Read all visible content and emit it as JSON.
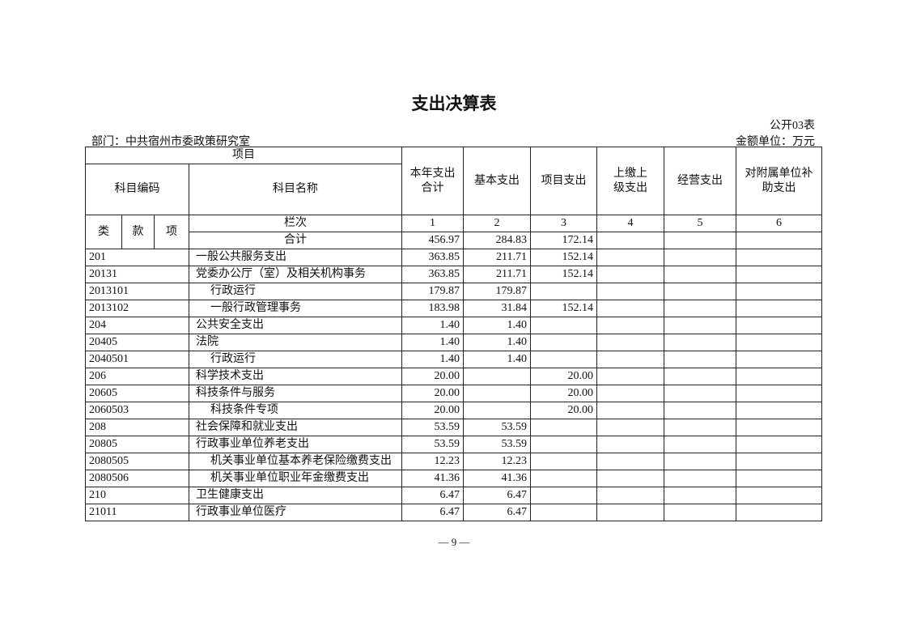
{
  "title": "支出决算表",
  "form_no": "公开03表",
  "department": "部门：中共宿州市委政策研究室",
  "unit": "金额单位：万元",
  "header": {
    "item": "项目",
    "code": "科目编码",
    "name": "科目名称",
    "lei": "类",
    "kuan": "款",
    "xiang": "项",
    "lanci": "栏次",
    "columns": [
      "本年支出合计",
      "基本支出",
      "项目支出",
      "上缴上级支出",
      "经营支出",
      "对附属单位补助支出"
    ],
    "column_numbers": [
      "1",
      "2",
      "3",
      "4",
      "5",
      "6"
    ]
  },
  "total": {
    "label": "合计",
    "values": [
      "456.97",
      "284.83",
      "172.14",
      "",
      "",
      ""
    ]
  },
  "rows": [
    {
      "code": "201",
      "name": "一般公共服务支出",
      "indent": false,
      "values": [
        "363.85",
        "211.71",
        "152.14",
        "",
        "",
        ""
      ]
    },
    {
      "code": "20131",
      "name": "党委办公厅（室）及相关机构事务",
      "indent": false,
      "values": [
        "363.85",
        "211.71",
        "152.14",
        "",
        "",
        ""
      ]
    },
    {
      "code": "2013101",
      "name": "行政运行",
      "indent": true,
      "values": [
        "179.87",
        "179.87",
        "",
        "",
        "",
        ""
      ]
    },
    {
      "code": "2013102",
      "name": "一般行政管理事务",
      "indent": true,
      "values": [
        "183.98",
        "31.84",
        "152.14",
        "",
        "",
        ""
      ]
    },
    {
      "code": "204",
      "name": "公共安全支出",
      "indent": false,
      "values": [
        "1.40",
        "1.40",
        "",
        "",
        "",
        ""
      ]
    },
    {
      "code": "20405",
      "name": "法院",
      "indent": false,
      "values": [
        "1.40",
        "1.40",
        "",
        "",
        "",
        ""
      ]
    },
    {
      "code": "2040501",
      "name": "行政运行",
      "indent": true,
      "values": [
        "1.40",
        "1.40",
        "",
        "",
        "",
        ""
      ]
    },
    {
      "code": "206",
      "name": "科学技术支出",
      "indent": false,
      "values": [
        "20.00",
        "",
        "20.00",
        "",
        "",
        ""
      ]
    },
    {
      "code": "20605",
      "name": "科技条件与服务",
      "indent": false,
      "values": [
        "20.00",
        "",
        "20.00",
        "",
        "",
        ""
      ]
    },
    {
      "code": "2060503",
      "name": "科技条件专项",
      "indent": true,
      "values": [
        "20.00",
        "",
        "20.00",
        "",
        "",
        ""
      ]
    },
    {
      "code": "208",
      "name": "社会保障和就业支出",
      "indent": false,
      "values": [
        "53.59",
        "53.59",
        "",
        "",
        "",
        ""
      ]
    },
    {
      "code": "20805",
      "name": "行政事业单位养老支出",
      "indent": false,
      "values": [
        "53.59",
        "53.59",
        "",
        "",
        "",
        ""
      ]
    },
    {
      "code": "2080505",
      "name": "机关事业单位基本养老保险缴费支出",
      "indent": true,
      "values": [
        "12.23",
        "12.23",
        "",
        "",
        "",
        ""
      ]
    },
    {
      "code": "2080506",
      "name": "机关事业单位职业年金缴费支出",
      "indent": true,
      "values": [
        "41.36",
        "41.36",
        "",
        "",
        "",
        ""
      ]
    },
    {
      "code": "210",
      "name": "卫生健康支出",
      "indent": false,
      "values": [
        "6.47",
        "6.47",
        "",
        "",
        "",
        ""
      ]
    },
    {
      "code": "21011",
      "name": "行政事业单位医疗",
      "indent": false,
      "values": [
        "6.47",
        "6.47",
        "",
        "",
        "",
        ""
      ]
    }
  ],
  "page_number": "— 9 —"
}
